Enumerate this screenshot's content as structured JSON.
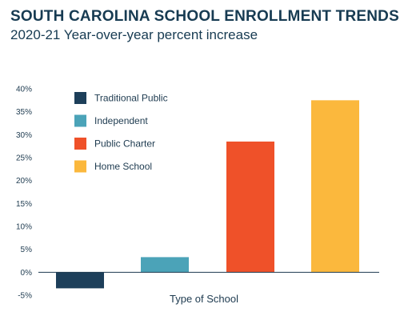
{
  "header": {
    "title": "SOUTH CAROLINA SCHOOL ENROLLMENT TRENDS",
    "subtitle": "2020-21 Year-over-year percent increase"
  },
  "chart_data": {
    "type": "bar",
    "title": "SOUTH CAROLINA SCHOOL ENROLLMENT TRENDS",
    "subtitle": "2020-21 Year-over-year percent increase",
    "xlabel": "Type of School",
    "ylabel": "",
    "ylim": [
      -5,
      40
    ],
    "yticks": [
      40,
      35,
      30,
      25,
      20,
      15,
      10,
      5,
      0,
      -5
    ],
    "ytick_labels": [
      "40%",
      "35%",
      "30%",
      "25%",
      "20%",
      "15%",
      "10%",
      "5%",
      "0%",
      "-5%"
    ],
    "categories": [
      "Traditional Public",
      "Independent",
      "Public Charter",
      "Home School"
    ],
    "values": [
      -3.5,
      3.3,
      28.5,
      37.5
    ],
    "colors": [
      "#1d3f5a",
      "#4ba3b8",
      "#ef5129",
      "#fbb83d"
    ],
    "legend_position": "top-left",
    "grid": false
  }
}
